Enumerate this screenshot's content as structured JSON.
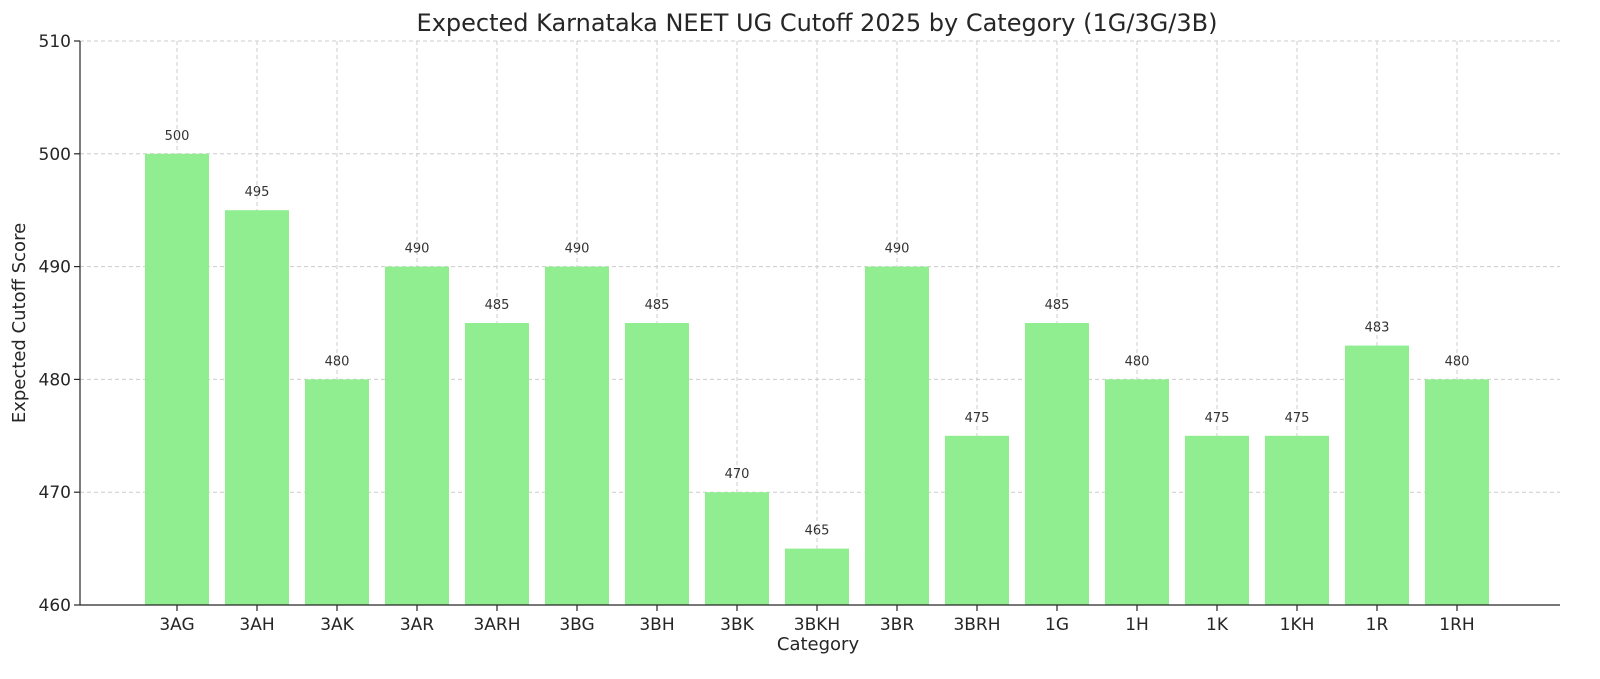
{
  "chart_data": {
    "type": "bar",
    "title": "Expected Karnataka NEET UG Cutoff 2025 by Category (1G/3G/3B)",
    "xlabel": "Category",
    "ylabel": "Expected Cutoff Score",
    "categories": [
      "3AG",
      "3AH",
      "3AK",
      "3AR",
      "3ARH",
      "3BG",
      "3BH",
      "3BK",
      "3BKH",
      "3BR",
      "3BRH",
      "1G",
      "1H",
      "1K",
      "1KH",
      "1R",
      "1RH"
    ],
    "values": [
      500,
      495,
      480,
      490,
      485,
      490,
      485,
      470,
      465,
      490,
      475,
      485,
      480,
      475,
      475,
      483,
      480
    ],
    "data_labels": [
      "500",
      "495",
      "480",
      "490",
      "485",
      "490",
      "485",
      "470",
      "465",
      "490",
      "475",
      "485",
      "480",
      "475",
      "475",
      "483",
      "480"
    ],
    "ylim": [
      460,
      510
    ],
    "yticks": [
      "460",
      "470",
      "480",
      "490",
      "500",
      "510"
    ],
    "grid": true,
    "bar_color": "#90ee90"
  }
}
